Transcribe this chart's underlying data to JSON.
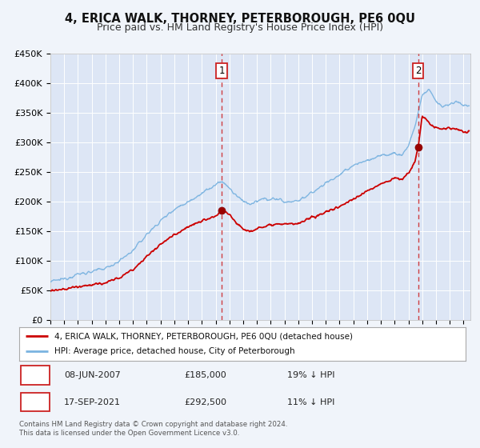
{
  "title": "4, ERICA WALK, THORNEY, PETERBOROUGH, PE6 0QU",
  "subtitle": "Price paid vs. HM Land Registry's House Price Index (HPI)",
  "ylim": [
    0,
    450000
  ],
  "yticks": [
    0,
    50000,
    100000,
    150000,
    200000,
    250000,
    300000,
    350000,
    400000,
    450000
  ],
  "ytick_labels": [
    "£0",
    "£50K",
    "£100K",
    "£150K",
    "£200K",
    "£250K",
    "£300K",
    "£350K",
    "£400K",
    "£450K"
  ],
  "xlim_start": 1995.0,
  "xlim_end": 2025.5,
  "background_color": "#f0f4fa",
  "plot_bg_color": "#dde6f5",
  "grid_color": "#ffffff",
  "sale1_date": 2007.44,
  "sale1_price": 185000,
  "sale1_label": "1",
  "sale2_date": 2021.71,
  "sale2_price": 292500,
  "sale2_label": "2",
  "hpi_color": "#7ab3e0",
  "price_color": "#cc0000",
  "marker_color": "#990000",
  "vline_color": "#cc2222",
  "legend_label_price": "4, ERICA WALK, THORNEY, PETERBOROUGH, PE6 0QU (detached house)",
  "legend_label_hpi": "HPI: Average price, detached house, City of Peterborough",
  "annotation1_date": "08-JUN-2007",
  "annotation1_price": "£185,000",
  "annotation1_hpi": "19% ↓ HPI",
  "annotation2_date": "17-SEP-2021",
  "annotation2_price": "£292,500",
  "annotation2_hpi": "11% ↓ HPI",
  "footer": "Contains HM Land Registry data © Crown copyright and database right 2024.\nThis data is licensed under the Open Government Licence v3.0.",
  "title_fontsize": 10.5,
  "subtitle_fontsize": 9,
  "tick_fontsize": 8,
  "legend_fontsize": 7.5,
  "ann_fontsize": 8
}
